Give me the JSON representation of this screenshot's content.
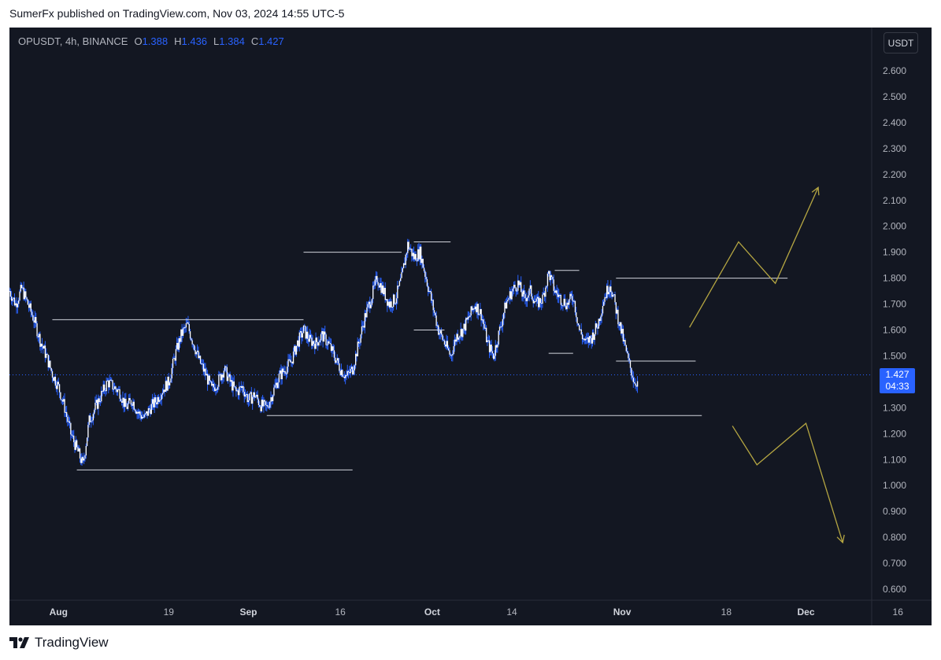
{
  "header": {
    "publisher": "SumerFx published on TradingView.com, Nov 03, 2024 14:55 UTC-5"
  },
  "symbol": {
    "name": "OPUSDT, 4h, BINANCE",
    "open_label": "O",
    "open": "1.388",
    "high_label": "H",
    "high": "1.436",
    "low_label": "L",
    "low": "1.384",
    "close_label": "C",
    "close": "1.427"
  },
  "currency_button": "USDT",
  "price_tag": {
    "price": "1.427",
    "countdown": "04:33"
  },
  "footer": {
    "brand": "TradingView",
    "logo_icon": "tradingview-logo-icon"
  },
  "colors": {
    "background": "#131722",
    "candle": "#ffffff",
    "wick": "#2962ff",
    "level_line": "#d1d4dc",
    "projection": "#b5a642",
    "accent": "#2962ff"
  },
  "chart_data": {
    "type": "candlestick",
    "symbol": "OPUSDT",
    "timeframe": "4h",
    "exchange": "BINANCE",
    "ylim": [
      0.55,
      2.75
    ],
    "y_ticks": [
      "2.600",
      "2.500",
      "2.400",
      "2.300",
      "2.200",
      "2.100",
      "2.000",
      "1.900",
      "1.800",
      "1.700",
      "1.600",
      "1.500",
      "1.400",
      "1.300",
      "1.200",
      "1.100",
      "1.000",
      "0.900",
      "0.800",
      "0.700",
      "0.600"
    ],
    "x_range": [
      "2024-07-24",
      "2024-12-21"
    ],
    "x_ticks": [
      {
        "label": "Aug",
        "date": "2024-08-01",
        "bold": true
      },
      {
        "label": "19",
        "date": "2024-08-19",
        "bold": false
      },
      {
        "label": "Sep",
        "date": "2024-09-01",
        "bold": true
      },
      {
        "label": "16",
        "date": "2024-09-16",
        "bold": false
      },
      {
        "label": "Oct",
        "date": "2024-10-01",
        "bold": true
      },
      {
        "label": "14",
        "date": "2024-10-14",
        "bold": false
      },
      {
        "label": "Nov",
        "date": "2024-11-01",
        "bold": true
      },
      {
        "label": "18",
        "date": "2024-11-18",
        "bold": false
      },
      {
        "label": "Dec",
        "date": "2024-12-01",
        "bold": true
      },
      {
        "label": "16",
        "date": "2024-12-16",
        "bold": false
      }
    ],
    "price_path": [
      [
        "2024-07-24",
        1.75
      ],
      [
        "2024-07-25",
        1.7
      ],
      [
        "2024-07-26",
        1.76
      ],
      [
        "2024-07-27",
        1.7
      ],
      [
        "2024-07-28",
        1.64
      ],
      [
        "2024-07-29",
        1.56
      ],
      [
        "2024-07-30",
        1.5
      ],
      [
        "2024-07-31",
        1.43
      ],
      [
        "2024-08-01",
        1.38
      ],
      [
        "2024-08-02",
        1.3
      ],
      [
        "2024-08-03",
        1.2
      ],
      [
        "2024-08-05",
        1.08
      ],
      [
        "2024-08-06",
        1.25
      ],
      [
        "2024-08-07",
        1.3
      ],
      [
        "2024-08-08",
        1.35
      ],
      [
        "2024-08-09",
        1.4
      ],
      [
        "2024-08-11",
        1.36
      ],
      [
        "2024-08-12",
        1.3
      ],
      [
        "2024-08-13",
        1.33
      ],
      [
        "2024-08-14",
        1.28
      ],
      [
        "2024-08-15",
        1.26
      ],
      [
        "2024-08-16",
        1.3
      ],
      [
        "2024-08-17",
        1.33
      ],
      [
        "2024-08-18",
        1.37
      ],
      [
        "2024-08-19",
        1.4
      ],
      [
        "2024-08-20",
        1.5
      ],
      [
        "2024-08-21",
        1.58
      ],
      [
        "2024-08-22",
        1.62
      ],
      [
        "2024-08-23",
        1.55
      ],
      [
        "2024-08-24",
        1.48
      ],
      [
        "2024-08-25",
        1.43
      ],
      [
        "2024-08-26",
        1.37
      ],
      [
        "2024-08-27",
        1.4
      ],
      [
        "2024-08-28",
        1.45
      ],
      [
        "2024-08-29",
        1.4
      ],
      [
        "2024-08-30",
        1.36
      ],
      [
        "2024-08-31",
        1.38
      ],
      [
        "2024-09-01",
        1.33
      ],
      [
        "2024-09-02",
        1.35
      ],
      [
        "2024-09-03",
        1.31
      ],
      [
        "2024-09-04",
        1.3
      ],
      [
        "2024-09-05",
        1.36
      ],
      [
        "2024-09-06",
        1.42
      ],
      [
        "2024-09-07",
        1.45
      ],
      [
        "2024-09-08",
        1.48
      ],
      [
        "2024-09-09",
        1.55
      ],
      [
        "2024-09-10",
        1.6
      ],
      [
        "2024-09-11",
        1.56
      ],
      [
        "2024-09-12",
        1.55
      ],
      [
        "2024-09-13",
        1.58
      ],
      [
        "2024-09-14",
        1.55
      ],
      [
        "2024-09-15",
        1.5
      ],
      [
        "2024-09-16",
        1.45
      ],
      [
        "2024-09-17",
        1.42
      ],
      [
        "2024-09-18",
        1.45
      ],
      [
        "2024-09-19",
        1.55
      ],
      [
        "2024-09-20",
        1.65
      ],
      [
        "2024-09-21",
        1.72
      ],
      [
        "2024-09-22",
        1.8
      ],
      [
        "2024-09-23",
        1.75
      ],
      [
        "2024-09-24",
        1.7
      ],
      [
        "2024-09-25",
        1.72
      ],
      [
        "2024-09-26",
        1.8
      ],
      [
        "2024-09-27",
        1.93
      ],
      [
        "2024-09-28",
        1.88
      ],
      [
        "2024-09-29",
        1.9
      ],
      [
        "2024-09-30",
        1.8
      ],
      [
        "2024-10-01",
        1.7
      ],
      [
        "2024-10-02",
        1.6
      ],
      [
        "2024-10-03",
        1.55
      ],
      [
        "2024-10-04",
        1.5
      ],
      [
        "2024-10-05",
        1.58
      ],
      [
        "2024-10-06",
        1.6
      ],
      [
        "2024-10-07",
        1.65
      ],
      [
        "2024-10-08",
        1.7
      ],
      [
        "2024-10-09",
        1.66
      ],
      [
        "2024-10-10",
        1.55
      ],
      [
        "2024-10-11",
        1.5
      ],
      [
        "2024-10-12",
        1.6
      ],
      [
        "2024-10-13",
        1.7
      ],
      [
        "2024-10-14",
        1.75
      ],
      [
        "2024-10-15",
        1.78
      ],
      [
        "2024-10-16",
        1.72
      ],
      [
        "2024-10-17",
        1.75
      ],
      [
        "2024-10-18",
        1.7
      ],
      [
        "2024-10-19",
        1.72
      ],
      [
        "2024-10-20",
        1.82
      ],
      [
        "2024-10-21",
        1.75
      ],
      [
        "2024-10-22",
        1.72
      ],
      [
        "2024-10-23",
        1.7
      ],
      [
        "2024-10-24",
        1.73
      ],
      [
        "2024-10-25",
        1.6
      ],
      [
        "2024-10-26",
        1.55
      ],
      [
        "2024-10-27",
        1.57
      ],
      [
        "2024-10-28",
        1.62
      ],
      [
        "2024-10-29",
        1.72
      ],
      [
        "2024-10-30",
        1.78
      ],
      [
        "2024-10-31",
        1.68
      ],
      [
        "2024-11-01",
        1.58
      ],
      [
        "2024-11-02",
        1.48
      ],
      [
        "2024-11-03",
        1.4
      ]
    ],
    "horizontal_levels": [
      {
        "price": 1.06,
        "from": "2024-08-04",
        "to": "2024-09-18"
      },
      {
        "price": 1.27,
        "from": "2024-09-04",
        "to": "2024-11-14"
      },
      {
        "price": 1.64,
        "from": "2024-07-31",
        "to": "2024-09-10"
      },
      {
        "price": 1.9,
        "from": "2024-09-10",
        "to": "2024-09-26"
      },
      {
        "price": 1.94,
        "from": "2024-09-28",
        "to": "2024-10-04"
      },
      {
        "price": 1.6,
        "from": "2024-09-28",
        "to": "2024-10-03"
      },
      {
        "price": 1.83,
        "from": "2024-10-21",
        "to": "2024-10-25"
      },
      {
        "price": 1.51,
        "from": "2024-10-20",
        "to": "2024-10-24"
      },
      {
        "price": 1.8,
        "from": "2024-10-31",
        "to": "2024-11-28"
      },
      {
        "price": 1.48,
        "from": "2024-10-31",
        "to": "2024-11-13"
      }
    ],
    "projections": [
      {
        "direction": "up",
        "points": [
          [
            "2024-11-12",
            1.61
          ],
          [
            "2024-11-20",
            1.94
          ],
          [
            "2024-11-26",
            1.78
          ],
          [
            "2024-12-03",
            2.15
          ]
        ]
      },
      {
        "direction": "down",
        "points": [
          [
            "2024-11-19",
            1.23
          ],
          [
            "2024-11-23",
            1.08
          ],
          [
            "2024-12-01",
            1.24
          ],
          [
            "2024-12-07",
            0.78
          ]
        ]
      }
    ],
    "last_price": 1.427,
    "grid": false
  }
}
